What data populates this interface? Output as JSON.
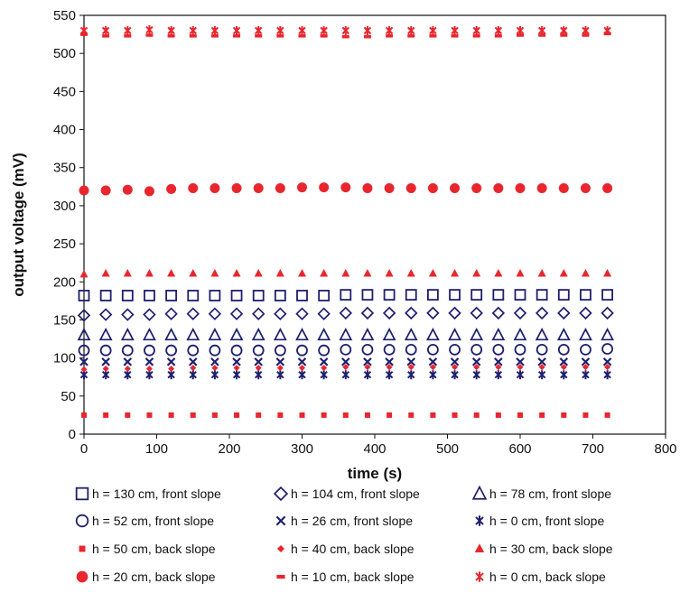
{
  "chart_data": {
    "type": "scatter",
    "xlabel": "time (s)",
    "ylabel": "output voltage (mV)",
    "xlim": [
      0,
      800
    ],
    "ylim": [
      0,
      550
    ],
    "xticks": [
      0,
      100,
      200,
      300,
      400,
      500,
      600,
      700,
      800
    ],
    "yticks": [
      0,
      50,
      100,
      150,
      200,
      250,
      300,
      350,
      400,
      450,
      500,
      550
    ],
    "grid": false,
    "legend_position": "bottom",
    "x": [
      0,
      30,
      60,
      90,
      120,
      150,
      180,
      210,
      240,
      270,
      300,
      330,
      360,
      390,
      420,
      450,
      480,
      510,
      540,
      570,
      600,
      630,
      660,
      690,
      720
    ],
    "series": [
      {
        "name": "h = 130 cm, front slope",
        "marker": "square-open",
        "color": "#1f1f6e",
        "values": [
          182,
          182,
          182,
          182,
          182,
          182,
          182,
          182,
          182,
          182,
          182,
          182,
          183,
          183,
          183,
          183,
          183,
          183,
          183,
          183,
          183,
          183,
          183,
          183,
          183
        ]
      },
      {
        "name": "h = 104 cm, front slope",
        "marker": "diamond-open",
        "color": "#1f1f6e",
        "values": [
          156,
          157,
          157,
          157,
          158,
          158,
          158,
          158,
          158,
          158,
          158,
          158,
          159,
          159,
          159,
          159,
          159,
          159,
          159,
          159,
          159,
          159,
          159,
          159,
          159
        ]
      },
      {
        "name": "h = 78 cm, front slope",
        "marker": "triangle-open",
        "color": "#1f1f6e",
        "values": [
          130,
          130,
          130,
          130,
          130,
          130,
          130,
          130,
          130,
          130,
          130,
          130,
          130,
          130,
          130,
          130,
          130,
          130,
          130,
          130,
          130,
          130,
          130,
          130,
          130
        ]
      },
      {
        "name": "h = 52 cm, front slope",
        "marker": "circle-open",
        "color": "#1f1f6e",
        "values": [
          110,
          110,
          110,
          110,
          110,
          110,
          110,
          110,
          110,
          110,
          110,
          110,
          111,
          111,
          111,
          111,
          111,
          111,
          111,
          111,
          111,
          111,
          111,
          111,
          112
        ]
      },
      {
        "name": "h = 26 cm, front slope",
        "marker": "x",
        "color": "#1f1f6e",
        "values": [
          95,
          95,
          95,
          95,
          95,
          95,
          95,
          95,
          95,
          95,
          95,
          95,
          95,
          95,
          95,
          95,
          95,
          95,
          95,
          95,
          95,
          95,
          95,
          95,
          95
        ]
      },
      {
        "name": "h = 0 cm, front slope",
        "marker": "star",
        "color": "#1f1f6e",
        "values": [
          78,
          78,
          78,
          78,
          78,
          78,
          78,
          78,
          78,
          78,
          78,
          78,
          78,
          78,
          78,
          78,
          78,
          78,
          78,
          78,
          78,
          78,
          78,
          78,
          78
        ]
      },
      {
        "name": "h = 50 cm, back slope",
        "marker": "square-filled",
        "color": "#e8262e",
        "values": [
          25,
          25,
          25,
          25,
          25,
          25,
          25,
          25,
          25,
          25,
          25,
          25,
          25,
          25,
          25,
          25,
          25,
          25,
          25,
          25,
          25,
          25,
          25,
          25,
          25
        ]
      },
      {
        "name": "h = 40 cm, back slope",
        "marker": "diamond-filled",
        "color": "#e8262e",
        "values": [
          85,
          86,
          86,
          86,
          86,
          87,
          87,
          87,
          87,
          87,
          87,
          87,
          88,
          88,
          88,
          88,
          88,
          88,
          88,
          88,
          88,
          88,
          88,
          88,
          88
        ]
      },
      {
        "name": "h = 30 cm, back slope",
        "marker": "triangle-filled",
        "color": "#e8262e",
        "values": [
          210,
          211,
          211,
          211,
          211,
          211,
          211,
          211,
          211,
          211,
          211,
          211,
          211,
          211,
          211,
          211,
          211,
          211,
          211,
          211,
          211,
          211,
          211,
          211,
          211
        ]
      },
      {
        "name": "h = 20 cm, back slope",
        "marker": "circle-filled",
        "color": "#e8262e",
        "values": [
          320,
          320,
          321,
          319,
          322,
          323,
          323,
          323,
          323,
          323,
          324,
          324,
          324,
          323,
          323,
          323,
          323,
          323,
          323,
          323,
          323,
          323,
          323,
          323,
          323
        ]
      },
      {
        "name": "h = 10 cm, back slope",
        "marker": "dash",
        "color": "#e8262e",
        "values": [
          525,
          523,
          523,
          524,
          523,
          523,
          523,
          523,
          523,
          523,
          523,
          523,
          522,
          522,
          523,
          523,
          523,
          523,
          523,
          523,
          524,
          524,
          524,
          524,
          526
        ]
      },
      {
        "name": "h = 0 cm, back slope",
        "marker": "star",
        "color": "#e8262e",
        "values": [
          530,
          530,
          530,
          531,
          530,
          530,
          530,
          530,
          530,
          530,
          530,
          530,
          530,
          530,
          530,
          530,
          530,
          530,
          530,
          530,
          530,
          530,
          530,
          530,
          530
        ]
      }
    ]
  }
}
